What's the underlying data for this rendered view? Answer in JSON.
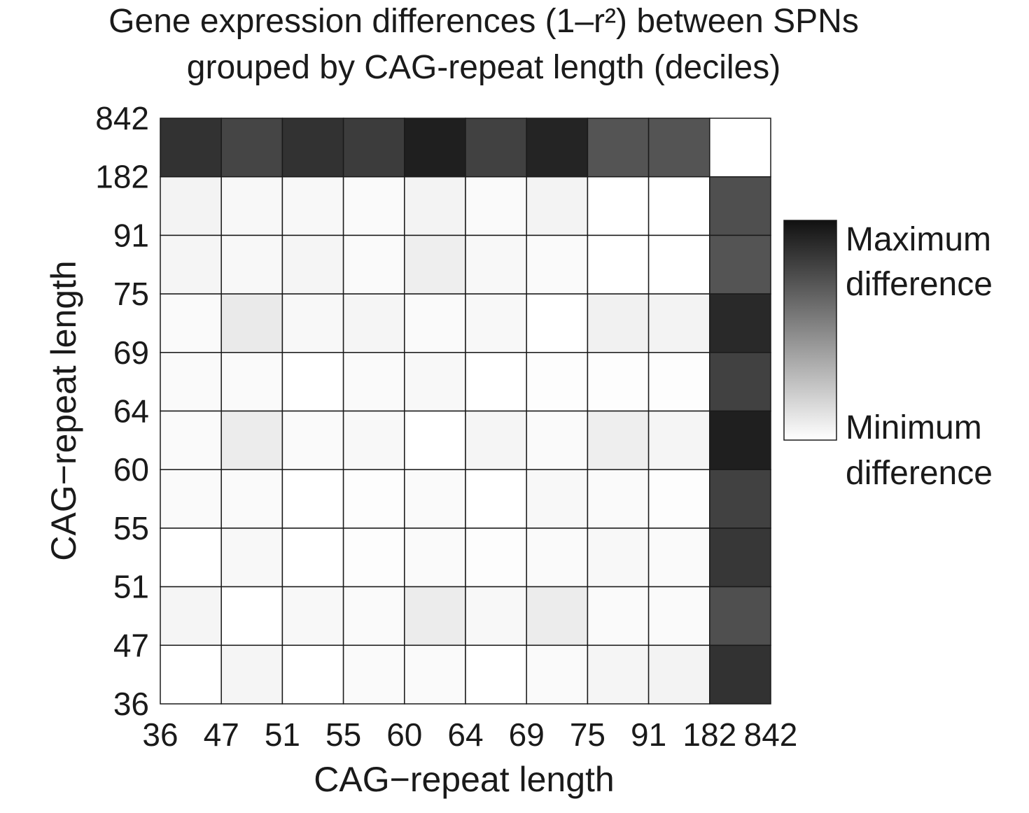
{
  "chart_data": {
    "type": "heatmap",
    "title_line1": "Gene expression differences (1–r²) between SPNs",
    "title_line2": "grouped by CAG-repeat length (deciles)",
    "xlabel": "CAG−repeat length",
    "ylabel": "CAG−repeat length",
    "tick_labels": [
      "36",
      "47",
      "51",
      "55",
      "60",
      "64",
      "69",
      "75",
      "91",
      "182",
      "842"
    ],
    "row_bins_top_to_bottom": [
      "182–842",
      "91–182",
      "75–91",
      "69–75",
      "64–69",
      "60–64",
      "55–60",
      "51–55",
      "47–51",
      "36–47"
    ],
    "col_bins_left_to_right": [
      "36–47",
      "47–51",
      "51–55",
      "55–60",
      "60–64",
      "64–69",
      "69–75",
      "75–91",
      "91–182",
      "182–842"
    ],
    "value_scale": "0 = minimum difference, 1 = maximum difference",
    "values_top_to_bottom": [
      [
        0.86,
        0.78,
        0.86,
        0.82,
        0.94,
        0.8,
        0.92,
        0.72,
        0.72,
        0.0
      ],
      [
        0.05,
        0.03,
        0.03,
        0.02,
        0.05,
        0.02,
        0.05,
        0.0,
        0.0,
        0.74
      ],
      [
        0.04,
        0.03,
        0.04,
        0.02,
        0.07,
        0.03,
        0.02,
        0.0,
        0.0,
        0.72
      ],
      [
        0.02,
        0.09,
        0.03,
        0.04,
        0.02,
        0.03,
        0.0,
        0.06,
        0.05,
        0.9
      ],
      [
        0.02,
        0.02,
        0.0,
        0.02,
        0.03,
        0.0,
        0.01,
        0.01,
        0.01,
        0.8
      ],
      [
        0.02,
        0.08,
        0.02,
        0.03,
        0.0,
        0.04,
        0.02,
        0.07,
        0.04,
        0.94
      ],
      [
        0.02,
        0.02,
        0.0,
        0.01,
        0.02,
        0.0,
        0.03,
        0.02,
        0.01,
        0.8
      ],
      [
        0.0,
        0.03,
        0.0,
        0.01,
        0.02,
        0.01,
        0.02,
        0.03,
        0.02,
        0.84
      ],
      [
        0.04,
        0.0,
        0.03,
        0.02,
        0.08,
        0.03,
        0.08,
        0.02,
        0.02,
        0.74
      ],
      [
        0.0,
        0.04,
        0.0,
        0.02,
        0.02,
        0.0,
        0.02,
        0.04,
        0.05,
        0.86
      ]
    ],
    "legend": {
      "max_label_line1": "Maximum",
      "max_label_line2": "difference",
      "min_label_line1": "Minimum",
      "min_label_line2": "difference",
      "placement": "right",
      "color_max": "#111111",
      "color_min": "#ffffff"
    },
    "cell_border_color": "#1a1a1a"
  }
}
